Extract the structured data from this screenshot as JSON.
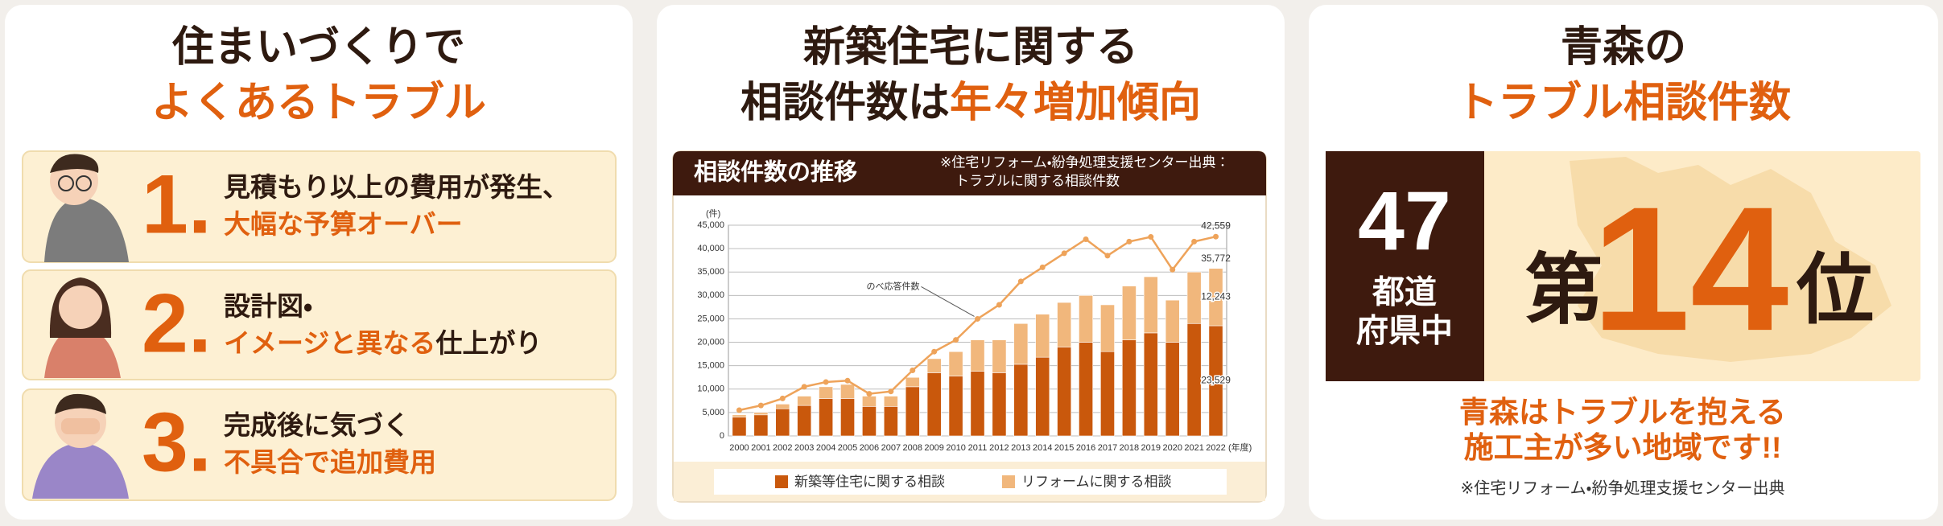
{
  "panels": [
    {
      "title": [
        [
          {
            "text": "住まいづくりで",
            "accent": false
          }
        ],
        [
          {
            "text": "よくあるトラブル",
            "accent": true
          }
        ]
      ],
      "items": [
        {
          "number": "1.",
          "lines": [
            [
              {
                "text": "見積もり以上の費用が発生、",
                "accent": false
              }
            ],
            [
              {
                "text": "大幅な予算オーバー",
                "accent": true
              }
            ]
          ]
        },
        {
          "number": "2.",
          "lines": [
            [
              {
                "text": "設計図・",
                "accent": false
              }
            ],
            [
              {
                "text": "イメージと異なる",
                "accent": true
              },
              {
                "text": "仕上がり",
                "accent": false
              }
            ]
          ]
        },
        {
          "number": "3.",
          "lines": [
            [
              {
                "text": "完成後に気づく",
                "accent": false
              }
            ],
            [
              {
                "text": "不具合で追加費用",
                "accent": true
              }
            ]
          ]
        }
      ]
    },
    {
      "title": [
        [
          {
            "text": "新築住宅に関する",
            "accent": false
          }
        ],
        [
          {
            "text": "相談件数は",
            "accent": false
          },
          {
            "text": "年々増加傾向",
            "accent": true
          }
        ]
      ]
    },
    {
      "title": [
        [
          {
            "text": "青森の",
            "accent": false
          }
        ],
        [
          {
            "text": "トラブル相談件数",
            "accent": true
          }
        ]
      ],
      "rank_box": {
        "total": "47",
        "total_label": [
          "都道",
          "府県中"
        ],
        "prefix": "第",
        "rank": "14",
        "suffix": "位"
      },
      "message": [
        "青森はトラブルを抱える",
        "施工主が多い地域です!!"
      ],
      "footnote": "※住宅リフォーム・紛争処理支援センター出典"
    }
  ],
  "chart_data": {
    "type": "bar",
    "stacked": true,
    "grid": true,
    "title": "相談件数の推移",
    "source_note": [
      "※住宅リフォーム・紛争処理支援センター出典：",
      "トラブルに関する相談件数"
    ],
    "y_unit_label": "(件)",
    "x_unit_label": "(年度)",
    "categories": [
      "2000",
      "2001",
      "2002",
      "2003",
      "2004",
      "2005",
      "2006",
      "2007",
      "2008",
      "2009",
      "2010",
      "2011",
      "2012",
      "2013",
      "2014",
      "2015",
      "2016",
      "2017",
      "2018",
      "2019",
      "2020",
      "2021",
      "2022"
    ],
    "ylim": [
      0,
      45000
    ],
    "yticks": [
      0,
      {
        "value": 5000,
        "label": "5,000"
      },
      {
        "value": 10000,
        "label": "10,000"
      },
      {
        "value": 15000,
        "label": "15,000"
      },
      {
        "value": 20000,
        "label": "20,000"
      },
      {
        "value": 25000,
        "label": "25,000"
      },
      {
        "value": 30000,
        "label": "30,000"
      },
      {
        "value": 35000,
        "label": "35,000"
      },
      {
        "value": 40000,
        "label": "40,000"
      },
      {
        "value": 45000,
        "label": "45,000"
      }
    ],
    "series": [
      {
        "name": "新築等住宅に関する相談",
        "type": "bar",
        "color": "#c9580c",
        "in_legend": true,
        "values": [
          4000,
          4500,
          5800,
          6500,
          8000,
          8000,
          6300,
          6300,
          10500,
          13500,
          12800,
          13800,
          13500,
          15300,
          16800,
          19000,
          20000,
          18000,
          20500,
          22000,
          20000,
          24000,
          23529
        ],
        "value_labels": [
          null,
          null,
          null,
          null,
          null,
          null,
          null,
          null,
          null,
          null,
          null,
          null,
          null,
          null,
          null,
          null,
          null,
          null,
          null,
          null,
          null,
          null,
          "23,529"
        ]
      },
      {
        "name": "リフォームに関する相談",
        "type": "bar",
        "color": "#f1b77c",
        "in_legend": true,
        "values": [
          500,
          500,
          1000,
          2000,
          2500,
          3000,
          2200,
          2200,
          2000,
          3000,
          5200,
          6700,
          7000,
          8700,
          9200,
          9500,
          10000,
          10000,
          11500,
          12000,
          9000,
          11000,
          12243
        ],
        "value_labels": [
          null,
          null,
          null,
          null,
          null,
          null,
          null,
          null,
          null,
          null,
          null,
          null,
          null,
          null,
          null,
          null,
          null,
          null,
          null,
          null,
          null,
          null,
          "12,243"
        ]
      },
      {
        "name": "のべ応答件数",
        "type": "line",
        "color": "#eea35a",
        "in_legend": false,
        "values": [
          5500,
          6500,
          8000,
          10500,
          11500,
          11800,
          9000,
          9500,
          14000,
          18000,
          20500,
          25000,
          28000,
          33000,
          36000,
          39000,
          42000,
          38500,
          41500,
          42500,
          35500,
          41500,
          42559
        ],
        "value_labels": [
          null,
          null,
          null,
          null,
          null,
          null,
          null,
          null,
          null,
          null,
          null,
          null,
          null,
          null,
          null,
          null,
          null,
          null,
          null,
          null,
          null,
          null,
          "42,559"
        ]
      }
    ],
    "annotations": [
      {
        "category": "2022",
        "value": 35772,
        "label": "35,772"
      }
    ]
  }
}
